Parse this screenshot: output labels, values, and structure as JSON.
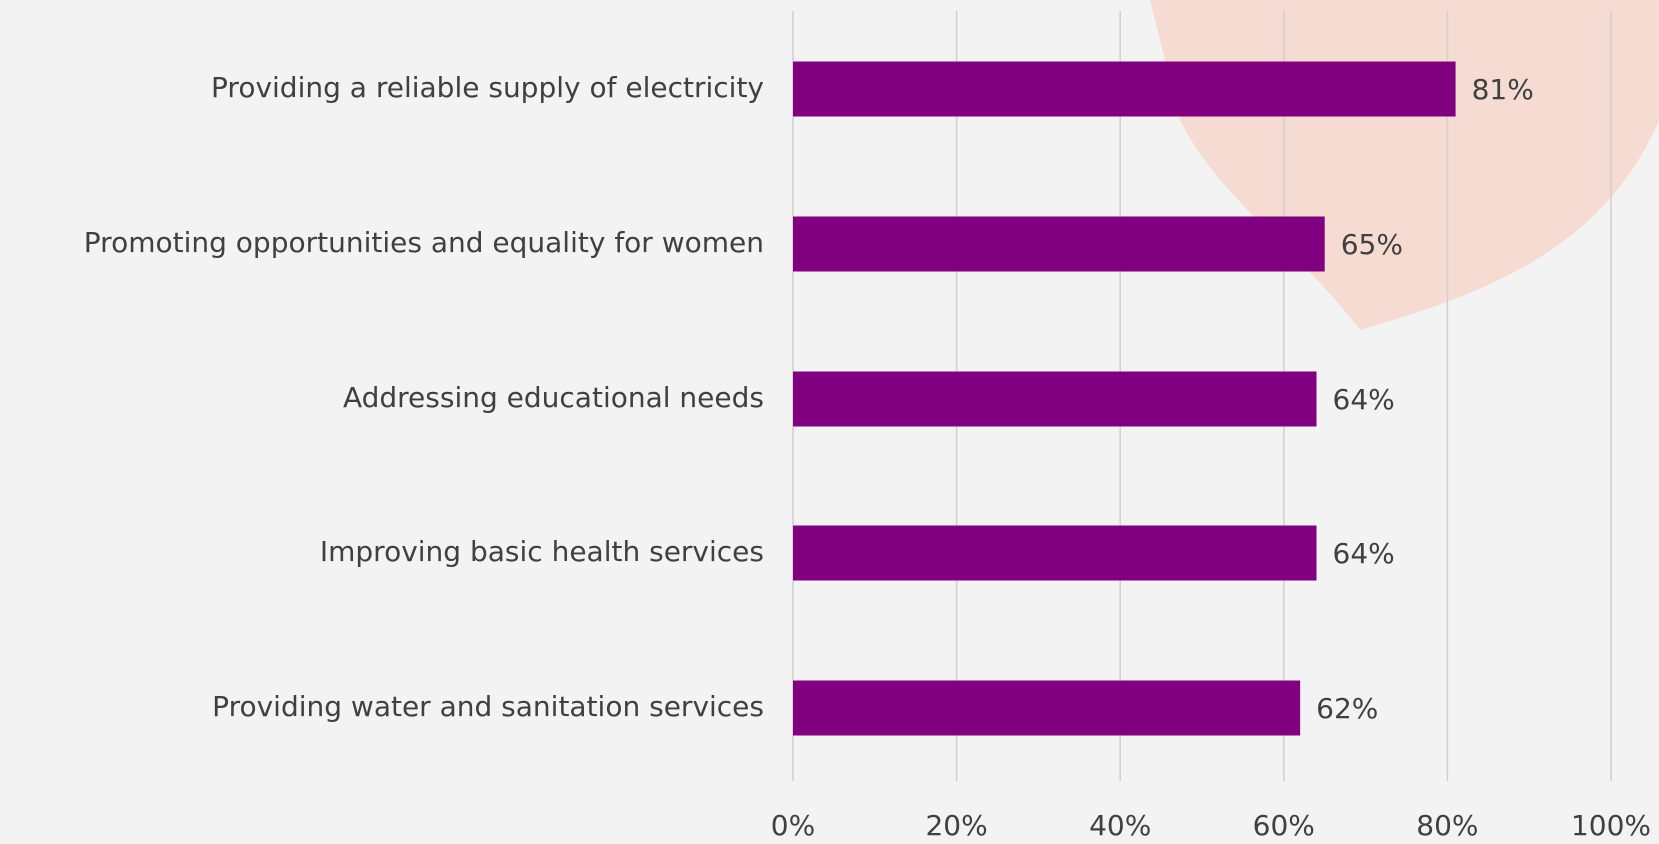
{
  "chart_data": {
    "type": "bar",
    "orientation": "horizontal",
    "categories": [
      "Providing a reliable supply of electricity",
      "Promoting opportunities and equality for women",
      "Addressing educational needs",
      "Improving basic health services",
      "Providing water and sanitation services"
    ],
    "values": [
      81,
      65,
      64,
      64,
      62
    ],
    "value_labels": [
      "81%",
      "65%",
      "64%",
      "64%",
      "62%"
    ],
    "color": "#800080",
    "xlim": [
      0,
      100
    ],
    "xticks": [
      {
        "value": 0,
        "label": "0%"
      },
      {
        "value": 20,
        "label": "20%"
      },
      {
        "value": 40,
        "label": "40%"
      },
      {
        "value": 60,
        "label": "60%"
      },
      {
        "value": 80,
        "label": "80%"
      },
      {
        "value": 100,
        "label": "100%"
      }
    ],
    "grid": true
  }
}
